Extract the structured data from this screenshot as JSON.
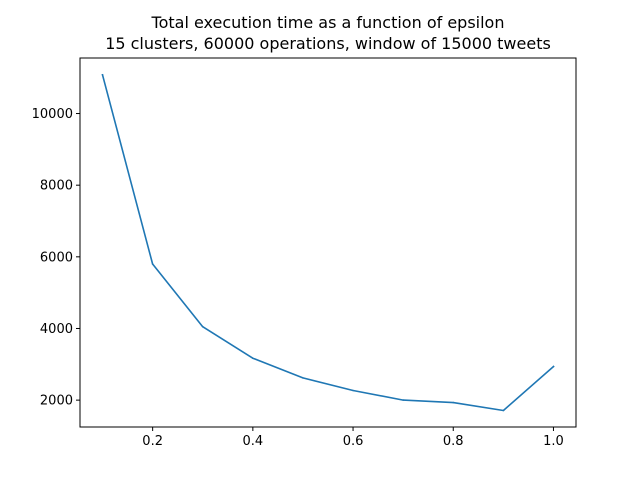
{
  "chart_data": {
    "type": "line",
    "title": "Total execution time as a function of epsilon",
    "subtitle": "15 clusters, 60000 operations, window of 15000 tweets",
    "xlabel": "",
    "ylabel": "",
    "xlim": [
      0.055,
      1.045
    ],
    "ylim": [
      1250,
      11550
    ],
    "xticks": [
      0.2,
      0.4,
      0.6,
      0.8,
      1.0
    ],
    "xtick_labels": [
      "0.2",
      "0.4",
      "0.6",
      "0.8",
      "1.0"
    ],
    "yticks": [
      2000,
      4000,
      6000,
      8000,
      10000
    ],
    "ytick_labels": [
      "2000",
      "4000",
      "6000",
      "8000",
      "10000"
    ],
    "grid": false,
    "legend": "none",
    "series": [
      {
        "color": "#1f77b4",
        "x": [
          0.1,
          0.2,
          0.3,
          0.4,
          0.5,
          0.6,
          0.7,
          0.8,
          0.9,
          1.0
        ],
        "y": [
          11080,
          5800,
          4050,
          3170,
          2620,
          2270,
          2000,
          1930,
          1710,
          2940
        ]
      }
    ]
  }
}
